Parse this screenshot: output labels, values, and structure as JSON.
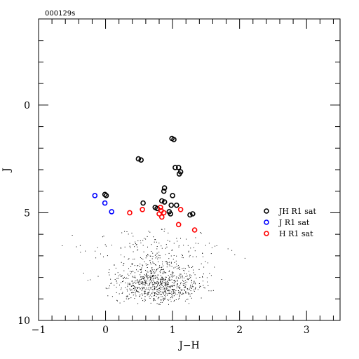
{
  "chart_data": {
    "type": "scatter",
    "id_label": "000129s",
    "xlabel": "J−H",
    "ylabel": "J",
    "xlim": [
      -1,
      3.5
    ],
    "ylim": [
      10,
      -4
    ],
    "x_ticks": [
      {
        "value": -1,
        "label": "−1"
      },
      {
        "value": 0,
        "label": "0"
      },
      {
        "value": 1,
        "label": "1"
      },
      {
        "value": 2,
        "label": "2"
      },
      {
        "value": 3,
        "label": "3"
      }
    ],
    "y_ticks": [
      {
        "value": 0,
        "label": "0"
      },
      {
        "value": 5,
        "label": "5"
      },
      {
        "value": 10,
        "label": "10"
      }
    ],
    "x_minor_step": 0.2,
    "y_minor_step": 1,
    "colors": {
      "jh": "#000000",
      "j": "#0000ff",
      "h": "#ff0000"
    },
    "series": [
      {
        "name": "JH R1 sat",
        "marker": "open-circle",
        "color": "#000000",
        "points": [
          [
            0.99,
            1.55
          ],
          [
            1.02,
            1.6
          ],
          [
            0.49,
            2.5
          ],
          [
            0.53,
            2.55
          ],
          [
            1.04,
            2.9
          ],
          [
            1.09,
            2.9
          ],
          [
            1.12,
            3.1
          ],
          [
            1.1,
            3.2
          ],
          [
            0.88,
            3.85
          ],
          [
            0.87,
            4.0
          ],
          [
            -0.01,
            4.15
          ],
          [
            0.01,
            4.2
          ],
          [
            1.0,
            4.2
          ],
          [
            0.84,
            4.45
          ],
          [
            0.88,
            4.5
          ],
          [
            0.56,
            4.55
          ],
          [
            1.06,
            4.65
          ],
          [
            0.98,
            4.65
          ],
          [
            0.74,
            4.75
          ],
          [
            0.77,
            4.8
          ],
          [
            0.95,
            4.95
          ],
          [
            0.97,
            5.05
          ],
          [
            1.26,
            5.1
          ],
          [
            1.3,
            5.05
          ]
        ]
      },
      {
        "name": "J R1 sat",
        "marker": "open-circle",
        "color": "#0000ff",
        "points": [
          [
            -0.16,
            4.2
          ],
          [
            -0.01,
            4.55
          ],
          [
            0.09,
            4.95
          ]
        ]
      },
      {
        "name": "H R1 sat",
        "marker": "open-circle",
        "color": "#ff0000",
        "points": [
          [
            0.36,
            5.0
          ],
          [
            0.55,
            4.85
          ],
          [
            0.82,
            4.75
          ],
          [
            0.83,
            4.9
          ],
          [
            0.87,
            5.0
          ],
          [
            0.8,
            5.05
          ],
          [
            0.84,
            5.2
          ],
          [
            1.12,
            4.85
          ],
          [
            1.09,
            5.55
          ],
          [
            1.33,
            5.8
          ]
        ]
      }
    ],
    "background_points": {
      "seed": 129,
      "groups": [
        {
          "count": 700,
          "x_mean": 0.78,
          "x_sd": 0.32,
          "y_mean": 8.35,
          "y_sd": 0.45
        },
        {
          "count": 250,
          "x_mean": 0.7,
          "x_sd": 0.38,
          "y_mean": 7.2,
          "y_sd": 0.75
        },
        {
          "count": 40,
          "x_mean": 0.9,
          "x_sd": 0.6,
          "y_mean": 6.6,
          "y_sd": 0.5
        }
      ],
      "y_max": 9.25
    }
  }
}
